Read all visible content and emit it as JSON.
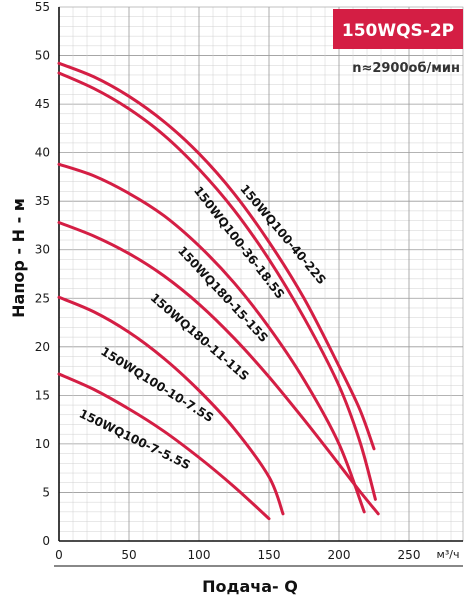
{
  "chart_data": {
    "type": "line",
    "title": "150WQS-2P",
    "subtitle": "n≈2900об/мин",
    "xlabel": "Подача- Q",
    "ylabel": "Напор - H - м",
    "x_unit": "м³/ч",
    "xlim": [
      0,
      280
    ],
    "ylim": [
      0,
      55
    ],
    "x_ticks": [
      0,
      50,
      100,
      150,
      200,
      250
    ],
    "y_ticks": [
      0,
      5,
      10,
      15,
      20,
      25,
      30,
      35,
      40,
      45,
      50,
      55
    ],
    "grid": true,
    "curve_color": "#d41e44",
    "title_bg": "#d41e44",
    "series": [
      {
        "name": "150WQ100-40-22S",
        "x": [
          0,
          25,
          50,
          75,
          100,
          125,
          150,
          175,
          200,
          215,
          225
        ],
        "y": [
          49.2,
          47.8,
          45.8,
          43.2,
          39.9,
          35.8,
          30.8,
          25.0,
          18.0,
          13.5,
          9.5
        ]
      },
      {
        "name": "150WQ100-36-18.5S",
        "x": [
          0,
          25,
          50,
          75,
          100,
          125,
          150,
          175,
          200,
          215,
          226
        ],
        "y": [
          48.2,
          46.6,
          44.5,
          41.8,
          38.3,
          34.1,
          29.0,
          23.0,
          16.0,
          10.2,
          4.3
        ]
      },
      {
        "name": "150WQ180-15-15S",
        "x": [
          0,
          25,
          50,
          75,
          100,
          125,
          150,
          175,
          200,
          218
        ],
        "y": [
          38.8,
          37.6,
          35.8,
          33.5,
          30.4,
          26.6,
          22.0,
          16.6,
          10.0,
          3.0
        ]
      },
      {
        "name": "150WQ180-11-11S",
        "x": [
          0,
          25,
          50,
          75,
          100,
          125,
          150,
          175,
          200,
          215,
          228
        ],
        "y": [
          32.8,
          31.4,
          29.6,
          27.3,
          24.4,
          20.9,
          16.9,
          12.5,
          7.9,
          5.1,
          2.8
        ]
      },
      {
        "name": "150WQ100-10-7.5S",
        "x": [
          0,
          25,
          50,
          75,
          100,
          125,
          150,
          160
        ],
        "y": [
          25.1,
          23.6,
          21.5,
          18.8,
          15.5,
          11.6,
          6.6,
          2.8
        ]
      },
      {
        "name": "150WQ100-7-5.5S",
        "x": [
          0,
          25,
          50,
          75,
          100,
          125,
          150
        ],
        "y": [
          17.2,
          15.6,
          13.6,
          11.3,
          8.6,
          5.6,
          2.3
        ]
      }
    ]
  }
}
